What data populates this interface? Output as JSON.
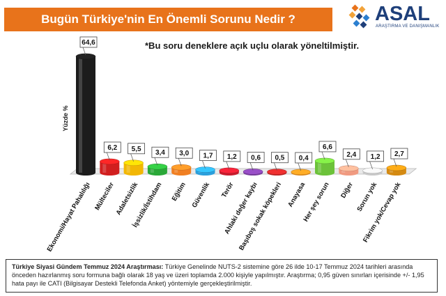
{
  "header": {
    "title": "Bugün Türkiye'nin En Önemli Sorunu Nedir ?"
  },
  "logo": {
    "name": "ASAL",
    "subtitle": "ARAŞTIRMA VE DANIŞMANLIK"
  },
  "note": "*Bu soru deneklere açık uçlu olarak yöneltilmiştir.",
  "footer": {
    "bold": "Türkiye Siyasi Gündem Temmuz 2024 Araştırması:",
    "text": " Türkiye Genelinde NUTS-2 sistemine göre 26 ilde 10-17 Temmuz 2024 tarihleri arasında önceden hazırlanmış soru formuna bağlı olarak 18 yaş ve üzeri toplamda 2.000 kişiyle yapılmıştır. Araştırma; 0,95 güven sınırları içerisinde +/- 1,95 hata payı ile CATI (Bilgisayar Destekli Telefonda Anket) yöntemiyle gerçekleştirilmiştir."
  },
  "chart_data": {
    "type": "bar",
    "ylabel": "Yüzde %",
    "categories": [
      "Ekonomi/Hayat Pahalılığı",
      "Mülteciler",
      "Adaletsizlik",
      "İşsizlik/İstihdam",
      "Eğitim",
      "Güvenlik",
      "Terör",
      "Ahlaki değer kaybı",
      "Başıboş sokak köpekleri",
      "Anayasa",
      "Her şey sorun",
      "Diğer",
      "Sorun yok",
      "Fikrim yok/Cevap yok"
    ],
    "values": [
      64.6,
      6.2,
      5.5,
      3.4,
      3.0,
      1.7,
      1.2,
      0.6,
      0.5,
      0.4,
      6.6,
      2.4,
      1.2,
      2.7
    ],
    "labels": [
      "64,6",
      "6,2",
      "5,5",
      "3,4",
      "3,0",
      "1,7",
      "1,2",
      "0,6",
      "0,5",
      "0,4",
      "6,6",
      "2,4",
      "1,2",
      "2,7"
    ],
    "colors": [
      "#1c1c1c",
      "#d11f1f",
      "#f2b705",
      "#2aa838",
      "#f07f22",
      "#2b9fdc",
      "#c81d2e",
      "#7a3fa0",
      "#c02626",
      "#e08a1e",
      "#6cc23a",
      "#f09a80",
      "#c8c8c8",
      "#d48a12"
    ],
    "ylim": [
      0,
      70
    ],
    "grid": false,
    "legend": "none"
  }
}
